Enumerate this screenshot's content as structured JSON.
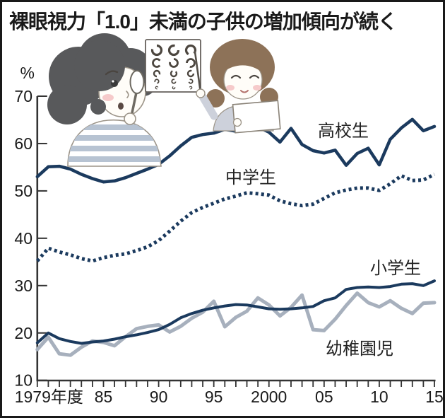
{
  "header": {
    "title": "裸眼視力「1.0」未満の子供の増加傾向が続く"
  },
  "chart_data": {
    "type": "line",
    "title": "裸眼視力「1.0」未満の子供の増加傾向が続く",
    "unit_label": "%",
    "x_start": 1979,
    "x_end": 2015,
    "x_tick_years": [
      1979,
      1985,
      1990,
      1995,
      2000,
      2005,
      2010,
      2015
    ],
    "x_tick_labels": [
      "1979年度",
      "85",
      "90",
      "95",
      "2000",
      "05",
      "10",
      "15"
    ],
    "ylim": [
      10,
      70
    ],
    "yticks": [
      70,
      60,
      50,
      40,
      30,
      20,
      10
    ],
    "grid": false,
    "legend_position": "inline-labels",
    "series": [
      {
        "key": "high-school",
        "name": "高校生",
        "color": "#1b3a5e",
        "style": "solid",
        "values": [
          53.0,
          55.1,
          55.2,
          54.6,
          53.5,
          52.6,
          51.9,
          52.1,
          52.8,
          53.7,
          54.6,
          55.6,
          57.4,
          59.5,
          61.3,
          61.9,
          62.2,
          63.0,
          62.6,
          63.1,
          63.5,
          62.4,
          60.3,
          63.2,
          59.8,
          58.5,
          58.0,
          58.6,
          55.4,
          57.9,
          59.0,
          55.5,
          60.9,
          63.3,
          65.1,
          62.7,
          63.6
        ]
      },
      {
        "key": "middle-school",
        "name": "中学生",
        "color": "#1b3a5e",
        "style": "dotted",
        "values": [
          35.2,
          37.9,
          37.1,
          36.5,
          35.7,
          35.2,
          35.9,
          36.4,
          36.7,
          37.4,
          38.2,
          39.5,
          41.5,
          43.6,
          45.4,
          46.5,
          47.4,
          48.3,
          48.9,
          49.6,
          49.4,
          49.1,
          47.9,
          47.3,
          46.9,
          47.2,
          48.4,
          49.6,
          50.2,
          50.6,
          50.6,
          50.1,
          51.5,
          53.2,
          52.2,
          52.3,
          53.5
        ]
      },
      {
        "key": "elementary",
        "name": "小学生",
        "color": "#1b3a5e",
        "style": "solid",
        "values": [
          17.9,
          20.0,
          18.8,
          18.2,
          17.8,
          18.1,
          18.3,
          18.7,
          19.2,
          19.6,
          20.1,
          20.7,
          21.8,
          23.2,
          24.1,
          24.8,
          25.3,
          25.7,
          26.0,
          25.9,
          25.5,
          25.1,
          25.0,
          25.1,
          25.3,
          25.6,
          26.8,
          27.4,
          29.2,
          29.6,
          29.7,
          29.6,
          29.8,
          30.3,
          30.4,
          30.0,
          31.0
        ]
      },
      {
        "key": "kindergarten",
        "name": "幼稚園児",
        "color": "#a7b0bd",
        "style": "solid",
        "values": [
          16.5,
          19.1,
          15.6,
          15.3,
          17.0,
          18.3,
          18.0,
          17.3,
          19.2,
          20.9,
          21.4,
          21.7,
          20.2,
          21.4,
          23.1,
          24.4,
          26.7,
          21.3,
          23.3,
          24.6,
          27.4,
          25.9,
          23.6,
          25.4,
          28.0,
          20.7,
          20.5,
          22.9,
          25.8,
          28.4,
          26.4,
          25.5,
          26.8,
          25.2,
          24.1,
          26.3,
          26.4
        ]
      }
    ]
  }
}
